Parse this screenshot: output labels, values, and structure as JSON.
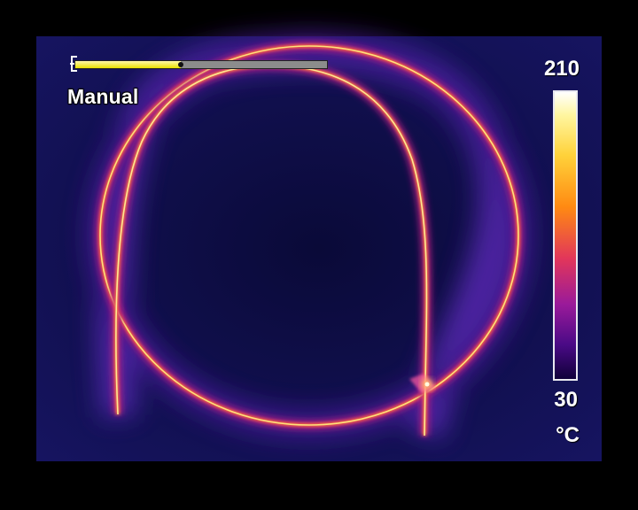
{
  "mode": "Manual",
  "scale": {
    "max": "210",
    "min": "30",
    "unit": "°C"
  },
  "focus": {
    "level": 0.42
  },
  "icons": {
    "focus": "focus-bracket-icon"
  },
  "colors": {
    "background": "#0b0b3e",
    "glow": "#4c1d9e",
    "wire_hot": "#ffe27a",
    "wire_warm": "#ff6a3c",
    "wire_edge": "#b01f80",
    "focus_fill": "#e9e000"
  }
}
